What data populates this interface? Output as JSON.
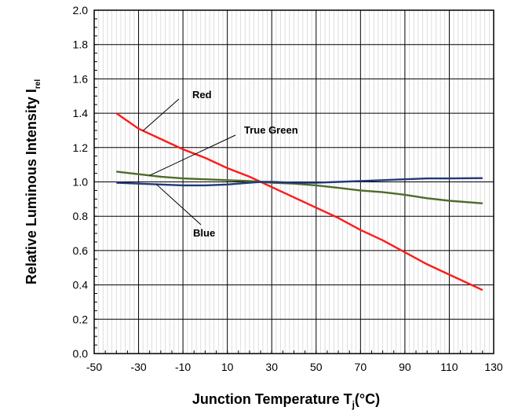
{
  "chart_data": {
    "type": "line",
    "xlabel_main": "Junction Temperature T",
    "xlabel_sub": "j",
    "xlabel_unit": "(°C)",
    "ylabel_main": "Relative Luminous Intensity I",
    "ylabel_sub": "rel",
    "xlim": [
      -50,
      130
    ],
    "ylim": [
      0,
      2
    ],
    "x_ticks": [
      "-50",
      "-30",
      "-10",
      "10",
      "30",
      "50",
      "70",
      "90",
      "110",
      "130"
    ],
    "y_ticks": [
      "0.0",
      "0.2",
      "0.4",
      "0.6",
      "0.8",
      "1.0",
      "1.2",
      "1.4",
      "1.6",
      "1.8",
      "2.0"
    ],
    "grid": true,
    "series": [
      {
        "name": "Red",
        "color": "#ff1a1a",
        "points": [
          [
            -40,
            1.4
          ],
          [
            -30,
            1.31
          ],
          [
            -20,
            1.25
          ],
          [
            -10,
            1.19
          ],
          [
            0,
            1.14
          ],
          [
            10,
            1.08
          ],
          [
            20,
            1.03
          ],
          [
            25,
            1.0
          ],
          [
            30,
            0.97
          ],
          [
            40,
            0.91
          ],
          [
            50,
            0.85
          ],
          [
            60,
            0.79
          ],
          [
            70,
            0.72
          ],
          [
            80,
            0.66
          ],
          [
            90,
            0.59
          ],
          [
            100,
            0.52
          ],
          [
            110,
            0.46
          ],
          [
            125,
            0.37
          ]
        ]
      },
      {
        "name": "True Green",
        "color": "#4e6b2a",
        "points": [
          [
            -40,
            1.06
          ],
          [
            -30,
            1.045
          ],
          [
            -20,
            1.03
          ],
          [
            -10,
            1.02
          ],
          [
            0,
            1.015
          ],
          [
            10,
            1.01
          ],
          [
            20,
            1.005
          ],
          [
            25,
            1.0
          ],
          [
            30,
            0.995
          ],
          [
            40,
            0.99
          ],
          [
            50,
            0.98
          ],
          [
            60,
            0.965
          ],
          [
            70,
            0.95
          ],
          [
            80,
            0.94
          ],
          [
            90,
            0.925
          ],
          [
            100,
            0.905
          ],
          [
            110,
            0.89
          ],
          [
            125,
            0.875
          ]
        ]
      },
      {
        "name": "Blue",
        "color": "#1f3a7a",
        "points": [
          [
            -40,
            0.995
          ],
          [
            -30,
            0.99
          ],
          [
            -20,
            0.985
          ],
          [
            -10,
            0.98
          ],
          [
            0,
            0.98
          ],
          [
            10,
            0.985
          ],
          [
            20,
            0.995
          ],
          [
            25,
            1.0
          ],
          [
            30,
            1.0
          ],
          [
            40,
            0.995
          ],
          [
            50,
            0.995
          ],
          [
            60,
            1.0
          ],
          [
            70,
            1.005
          ],
          [
            80,
            1.01
          ],
          [
            90,
            1.015
          ],
          [
            100,
            1.02
          ],
          [
            110,
            1.02
          ],
          [
            125,
            1.022
          ]
        ]
      }
    ],
    "annotations": [
      {
        "text": "Red",
        "series": 0,
        "at_x": -28
      },
      {
        "text": "True Green",
        "series": 1,
        "at_x": -25
      },
      {
        "text": "Blue",
        "series": 2,
        "at_x": -22
      }
    ]
  }
}
